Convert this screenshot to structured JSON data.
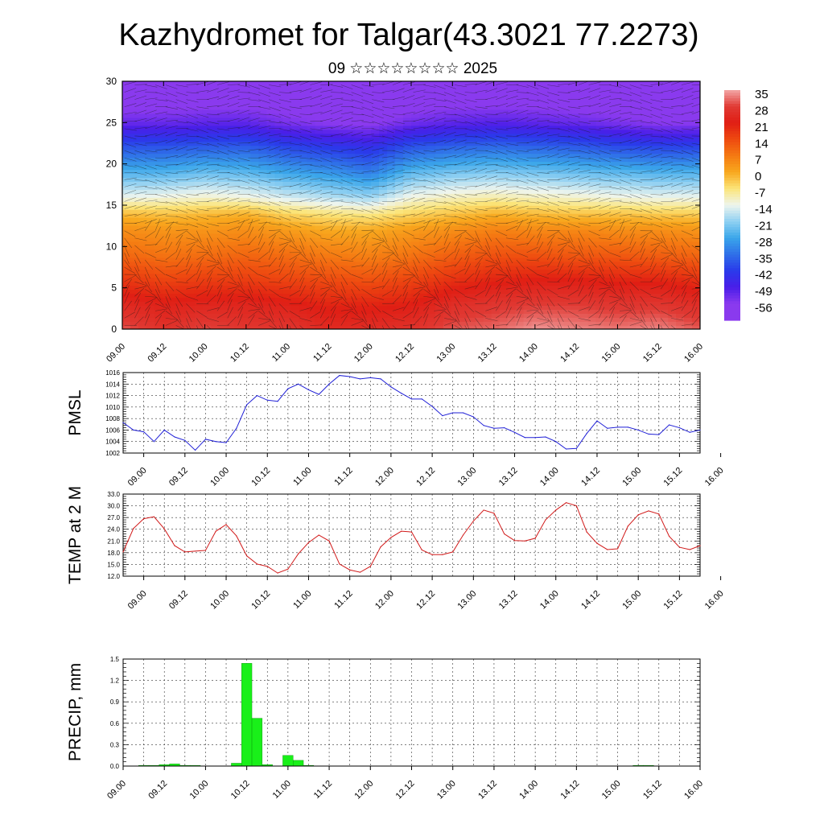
{
  "header": {
    "title": "Kazhydromet for Talgar(43.3021 77.2273)",
    "date": "09 ☆☆☆☆☆☆☆☆ 2025"
  },
  "x_tick_labels": [
    "09.00",
    "09.12",
    "10.00",
    "10.12",
    "11.00",
    "11.12",
    "12.00",
    "12.12",
    "13.00",
    "13.12",
    "14.00",
    "14.12",
    "15.00",
    "15.12",
    "16.00"
  ],
  "chart_data": [
    {
      "type": "heatmap",
      "ylim": [
        0,
        30
      ],
      "y_ticks": [
        0,
        5,
        10,
        15,
        20,
        25,
        30
      ],
      "colorbar": {
        "labels": [
          "35",
          "28",
          "21",
          "14",
          "7",
          "0",
          "-7",
          "-14",
          "-21",
          "-28",
          "-35",
          "-42",
          "-49",
          "-56"
        ],
        "colors": [
          "#f2a6a6",
          "#e03a34",
          "#e01e14",
          "#ee4a10",
          "#f57a12",
          "#f8a81e",
          "#fbe57a",
          "#eef5ee",
          "#8fd0f2",
          "#3aa6ea",
          "#2f6fe8",
          "#2a3aea",
          "#4a1ee8",
          "#8a3aee"
        ]
      },
      "x": [
        "09.00",
        "09.12",
        "10.00",
        "10.12",
        "11.00",
        "11.12",
        "12.00",
        "12.12",
        "13.00",
        "13.12",
        "14.00",
        "14.12",
        "15.00",
        "15.12",
        "16.00"
      ],
      "layers": [
        {
          "height": 0,
          "values": [
            30,
            26,
            29,
            27,
            27,
            24,
            25,
            26,
            30,
            31,
            34,
            33,
            32,
            33,
            30
          ]
        },
        {
          "height": 3,
          "values": [
            24,
            22,
            23,
            23,
            22,
            20,
            20,
            21,
            25,
            27,
            28,
            28,
            27,
            27,
            25
          ]
        },
        {
          "height": 6,
          "values": [
            17,
            15,
            16,
            16,
            15,
            14,
            13,
            15,
            18,
            20,
            21,
            21,
            20,
            20,
            18
          ]
        },
        {
          "height": 9,
          "values": [
            10,
            8,
            9,
            10,
            9,
            7,
            6,
            8,
            11,
            13,
            13,
            12,
            12,
            11,
            10
          ]
        },
        {
          "height": 12,
          "values": [
            4,
            3,
            3,
            4,
            2,
            0,
            0,
            2,
            4,
            6,
            5,
            5,
            4,
            4,
            3
          ]
        },
        {
          "height": 14,
          "values": [
            -2,
            -3,
            -2,
            -1,
            -5,
            -7,
            -8,
            -5,
            -3,
            -1,
            -2,
            -3,
            -3,
            -4,
            -4
          ]
        },
        {
          "height": 16,
          "values": [
            -14,
            -13,
            -12,
            -13,
            -16,
            -18,
            -20,
            -13,
            -11,
            -10,
            -11,
            -12,
            -13,
            -14,
            -14
          ]
        },
        {
          "height": 19,
          "values": [
            -26,
            -26,
            -24,
            -25,
            -28,
            -30,
            -33,
            -25,
            -23,
            -22,
            -23,
            -24,
            -25,
            -26,
            -26
          ]
        },
        {
          "height": 22,
          "values": [
            -38,
            -38,
            -37,
            -37,
            -40,
            -42,
            -44,
            -38,
            -36,
            -35,
            -36,
            -37,
            -39,
            -40,
            -40
          ]
        },
        {
          "height": 25,
          "values": [
            -52,
            -52,
            -51,
            -51,
            -54,
            -56,
            -57,
            -53,
            -51,
            -50,
            -51,
            -52,
            -54,
            -56,
            -56
          ]
        },
        {
          "height": 28,
          "values": [
            -60,
            -60,
            -59,
            -59,
            -60,
            -61,
            -61,
            -60,
            -59,
            -59,
            -59,
            -60,
            -60,
            -61,
            -61
          ]
        },
        {
          "height": 30,
          "values": [
            -60,
            -60,
            -60,
            -60,
            -61,
            -61,
            -61,
            -61,
            -60,
            -60,
            -60,
            -61,
            -61,
            -61,
            -61
          ]
        }
      ]
    },
    {
      "type": "line",
      "ylabel": "PMSL",
      "ylim": [
        1002,
        1016
      ],
      "y_ticks": [
        1002,
        1004,
        1006,
        1008,
        1010,
        1012,
        1014,
        1016
      ],
      "color": "#1f1fd6",
      "x": [
        0,
        3,
        6,
        9,
        12,
        15,
        18,
        21,
        24,
        27,
        30,
        33,
        36,
        39,
        42,
        45,
        48,
        51,
        54,
        57,
        60,
        63,
        66,
        69,
        72,
        75,
        78,
        81,
        84,
        87,
        90,
        93,
        96,
        99,
        102,
        105,
        108,
        111,
        114,
        117,
        120,
        123,
        126,
        129,
        132,
        135,
        138,
        141,
        144,
        147,
        150,
        153,
        156,
        159,
        162,
        165,
        168
      ],
      "values": [
        1007.3,
        1006.0,
        1005.7,
        1004.0,
        1006.0,
        1004.8,
        1004.2,
        1002.5,
        1004.4,
        1004.0,
        1003.8,
        1006.3,
        1010.4,
        1012.0,
        1011.2,
        1011.0,
        1013.2,
        1014.0,
        1013.0,
        1012.2,
        1014.0,
        1015.5,
        1015.3,
        1014.9,
        1015.1,
        1014.9,
        1013.5,
        1012.4,
        1011.4,
        1011.4,
        1010.1,
        1008.5,
        1009.0,
        1009.0,
        1008.3,
        1006.8,
        1006.3,
        1006.4,
        1005.6,
        1004.7,
        1004.7,
        1004.8,
        1004.0,
        1002.7,
        1002.8,
        1005.4,
        1007.6,
        1006.3,
        1006.5,
        1006.5,
        1006.0,
        1005.3,
        1005.2,
        1006.9,
        1006.4,
        1005.6,
        1006.0
      ]
    },
    {
      "type": "line",
      "ylabel": "TEMP at 2 M",
      "ylim": [
        12.0,
        33.0
      ],
      "y_ticks": [
        12.0,
        15.0,
        18.0,
        21.0,
        24.0,
        27.0,
        30.0,
        33.0
      ],
      "y_tick_labels": [
        "12.0",
        "15.0",
        "18.0",
        "21.0",
        "24.0",
        "27.0",
        "30.0",
        "33.0"
      ],
      "color": "#d11a1a",
      "x": [
        0,
        3,
        6,
        9,
        12,
        15,
        18,
        21,
        24,
        27,
        30,
        33,
        36,
        39,
        42,
        45,
        48,
        51,
        54,
        57,
        60,
        63,
        66,
        69,
        72,
        75,
        78,
        81,
        84,
        87,
        90,
        93,
        96,
        99,
        102,
        105,
        108,
        111,
        114,
        117,
        120,
        123,
        126,
        129,
        132,
        135,
        138,
        141,
        144,
        147,
        150,
        153,
        156,
        159,
        162,
        165,
        168
      ],
      "values": [
        18.2,
        24.2,
        26.7,
        27.2,
        24.1,
        19.8,
        18.2,
        18.4,
        18.6,
        23.5,
        25.2,
        22.3,
        17.2,
        15.1,
        14.5,
        12.8,
        13.8,
        17.7,
        20.6,
        22.5,
        21.0,
        15.1,
        13.6,
        13.0,
        14.5,
        19.5,
        21.9,
        23.5,
        23.3,
        18.7,
        17.5,
        17.5,
        18.2,
        22.5,
        26.1,
        28.9,
        28.1,
        22.8,
        21.1,
        21.0,
        21.7,
        26.4,
        28.9,
        30.8,
        30.0,
        23.3,
        20.4,
        18.8,
        19.0,
        24.8,
        27.7,
        28.7,
        27.9,
        22.2,
        19.4,
        18.8,
        19.8
      ]
    },
    {
      "type": "bar",
      "ylabel": "PRECIP, mm",
      "ylim": [
        0.0,
        1.5
      ],
      "y_ticks": [
        0.0,
        0.3,
        0.6,
        0.9,
        1.2,
        1.5
      ],
      "y_tick_labels": [
        "0.0",
        "0.3",
        "0.6",
        "0.9",
        "1.2",
        "1.5"
      ],
      "color": "#19f019",
      "x": [
        6,
        9,
        12,
        15,
        18,
        21,
        33,
        36,
        39,
        42,
        48,
        51,
        54,
        150,
        153
      ],
      "values": [
        0.01,
        0.01,
        0.02,
        0.03,
        0.01,
        0.01,
        0.04,
        1.44,
        0.67,
        0.02,
        0.15,
        0.08,
        0.01,
        0.01,
        0.01
      ]
    }
  ]
}
